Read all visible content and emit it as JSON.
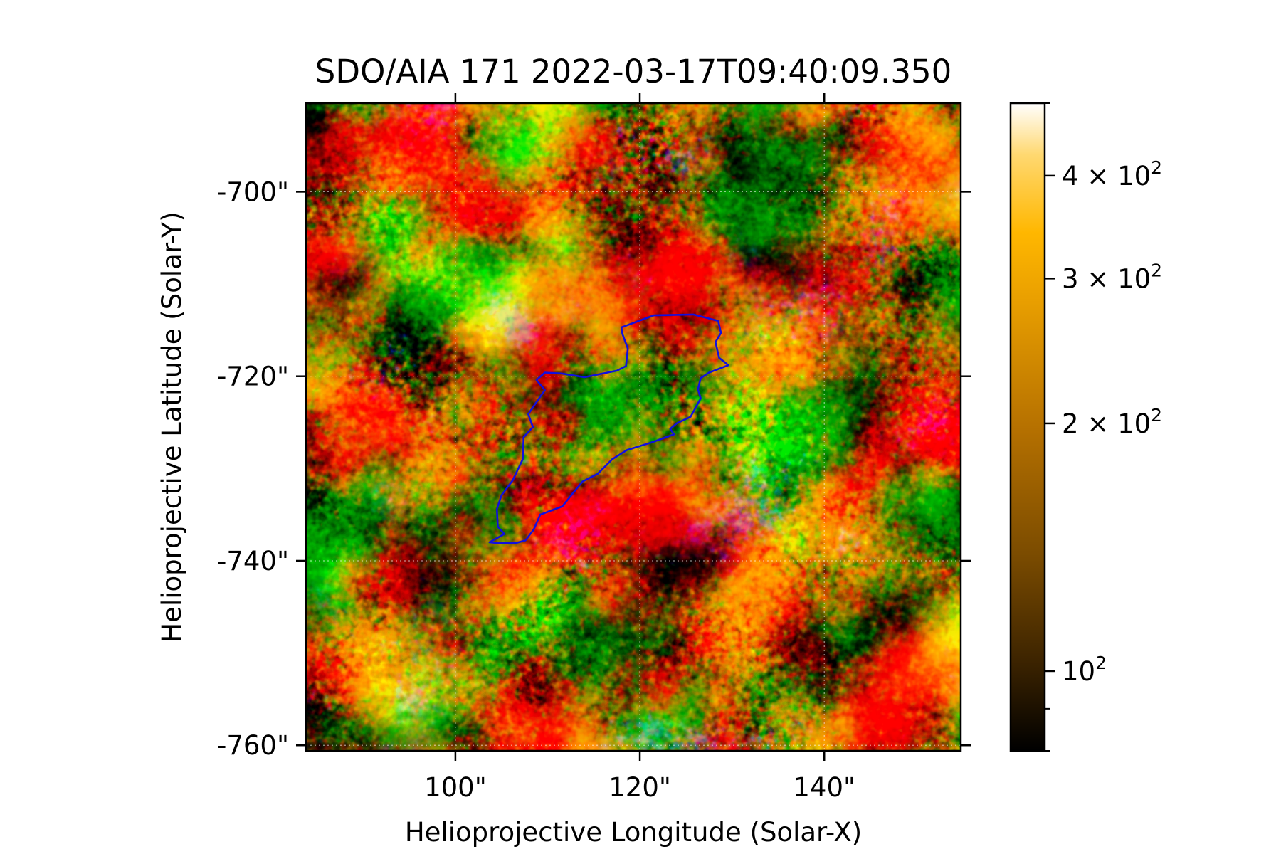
{
  "title": "SDO/AIA 171 2022-03-17T09:40:09.350",
  "xlabel": "Helioprojective Longitude (Solar-X)",
  "ylabel": "Helioprojective Latitude (Solar-Y)",
  "xaxis": {
    "range": [
      83.8,
      154.8
    ],
    "ticks": [
      {
        "value": 100,
        "label": "100\""
      },
      {
        "value": 120,
        "label": "120\""
      },
      {
        "value": 140,
        "label": "140\""
      }
    ]
  },
  "yaxis": {
    "range": [
      -760.6,
      -690.4
    ],
    "ticks": [
      {
        "value": -700,
        "label": "-700\""
      },
      {
        "value": -720,
        "label": "-720\""
      },
      {
        "value": -740,
        "label": "-740\""
      },
      {
        "value": -760,
        "label": "-760\""
      }
    ]
  },
  "grid": true,
  "colorbar": {
    "scale": "log",
    "range": [
      80,
      490
    ],
    "colormap": [
      "#000000",
      "#3d2400",
      "#7a4b00",
      "#b67100",
      "#eaa000",
      "#ffb700",
      "#ffd870",
      "#ffffff"
    ],
    "ticks": [
      {
        "value": 100,
        "label": "10",
        "sup": "2"
      },
      {
        "value": 200,
        "label": "2 × 10",
        "sup": "2"
      },
      {
        "value": 300,
        "label": "3 × 10",
        "sup": "2"
      },
      {
        "value": 400,
        "label": "4 × 10",
        "sup": "2"
      }
    ],
    "minor_ticks": [
      90
    ]
  },
  "contour": {
    "color": "#1010e0",
    "points": [
      [
        118.0,
        -714.7
      ],
      [
        121.5,
        -713.4
      ],
      [
        125.8,
        -713.3
      ],
      [
        128.5,
        -714.0
      ],
      [
        128.8,
        -715.3
      ],
      [
        128.2,
        -716.3
      ],
      [
        128.6,
        -718.0
      ],
      [
        129.6,
        -718.8
      ],
      [
        127.5,
        -719.6
      ],
      [
        126.6,
        -720.2
      ],
      [
        126.3,
        -721.4
      ],
      [
        126.6,
        -722.4
      ],
      [
        125.5,
        -724.4
      ],
      [
        124.0,
        -725.1
      ],
      [
        123.3,
        -725.7
      ],
      [
        123.7,
        -726.3
      ],
      [
        121.2,
        -727.2
      ],
      [
        118.6,
        -728.0
      ],
      [
        117.0,
        -729.0
      ],
      [
        115.4,
        -730.6
      ],
      [
        113.8,
        -731.4
      ],
      [
        112.8,
        -732.6
      ],
      [
        111.6,
        -734.1
      ],
      [
        109.2,
        -735.0
      ],
      [
        108.5,
        -736.6
      ],
      [
        107.6,
        -737.8
      ],
      [
        106.5,
        -738.1
      ],
      [
        104.7,
        -738.1
      ],
      [
        103.7,
        -738.0
      ],
      [
        105.3,
        -737.1
      ],
      [
        104.6,
        -736.3
      ],
      [
        104.5,
        -734.4
      ],
      [
        105.0,
        -732.9
      ],
      [
        106.2,
        -731.3
      ],
      [
        107.3,
        -729.0
      ],
      [
        107.4,
        -726.6
      ],
      [
        108.4,
        -725.5
      ],
      [
        107.9,
        -724.1
      ],
      [
        108.8,
        -722.8
      ],
      [
        109.7,
        -721.5
      ],
      [
        108.8,
        -720.4
      ],
      [
        109.7,
        -719.6
      ],
      [
        111.5,
        -719.7
      ],
      [
        114.0,
        -720.1
      ],
      [
        117.5,
        -719.4
      ],
      [
        118.5,
        -718.9
      ],
      [
        118.7,
        -717.0
      ],
      [
        118.1,
        -715.4
      ],
      [
        118.0,
        -714.7
      ]
    ]
  }
}
